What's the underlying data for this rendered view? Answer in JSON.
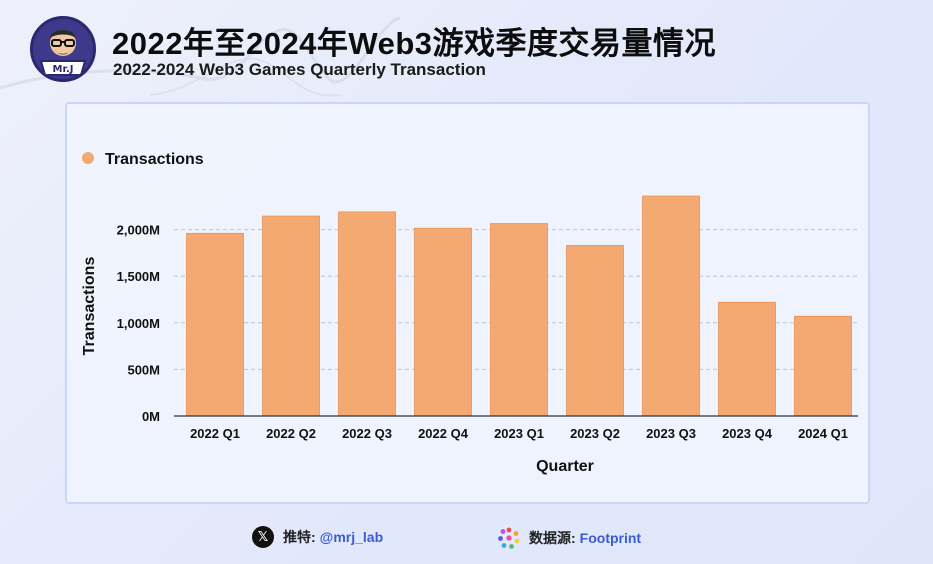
{
  "header": {
    "title": "2022年至2024年Web3游戏季度交易量情况",
    "subtitle": "2022-2024 Web3 Games Quarterly Transaction",
    "logo_icon": "mrj-avatar-icon",
    "logo_text": "Mr.J"
  },
  "footer": {
    "twitter_icon": "x-logo-icon",
    "twitter_label": "推特:",
    "twitter_handle": "@mrj_lab",
    "source_icon": "footprint-logo-icon",
    "source_label": "数据源:",
    "source_name": "Footprint"
  },
  "chart_data": {
    "type": "bar",
    "title": "",
    "xlabel": "Quarter",
    "ylabel": "Transactions",
    "legend_position": "top-left",
    "grid": true,
    "color": "#f4a972",
    "categories": [
      "2022 Q1",
      "2022 Q2",
      "2022 Q3",
      "2022 Q4",
      "2023 Q1",
      "2023 Q2",
      "2023 Q3",
      "2023 Q4",
      "2024 Q1"
    ],
    "series": [
      {
        "name": "Transactions",
        "values": [
          1960,
          2145,
          2190,
          2015,
          2065,
          1830,
          2360,
          1220,
          1070
        ]
      }
    ],
    "ylim": [
      0,
      2500
    ],
    "yticks": [
      0,
      500,
      1000,
      1500,
      2000
    ],
    "ytick_labels": [
      "0M",
      "500M",
      "1,000M",
      "1,500M",
      "2,000M"
    ],
    "unit": "M"
  }
}
